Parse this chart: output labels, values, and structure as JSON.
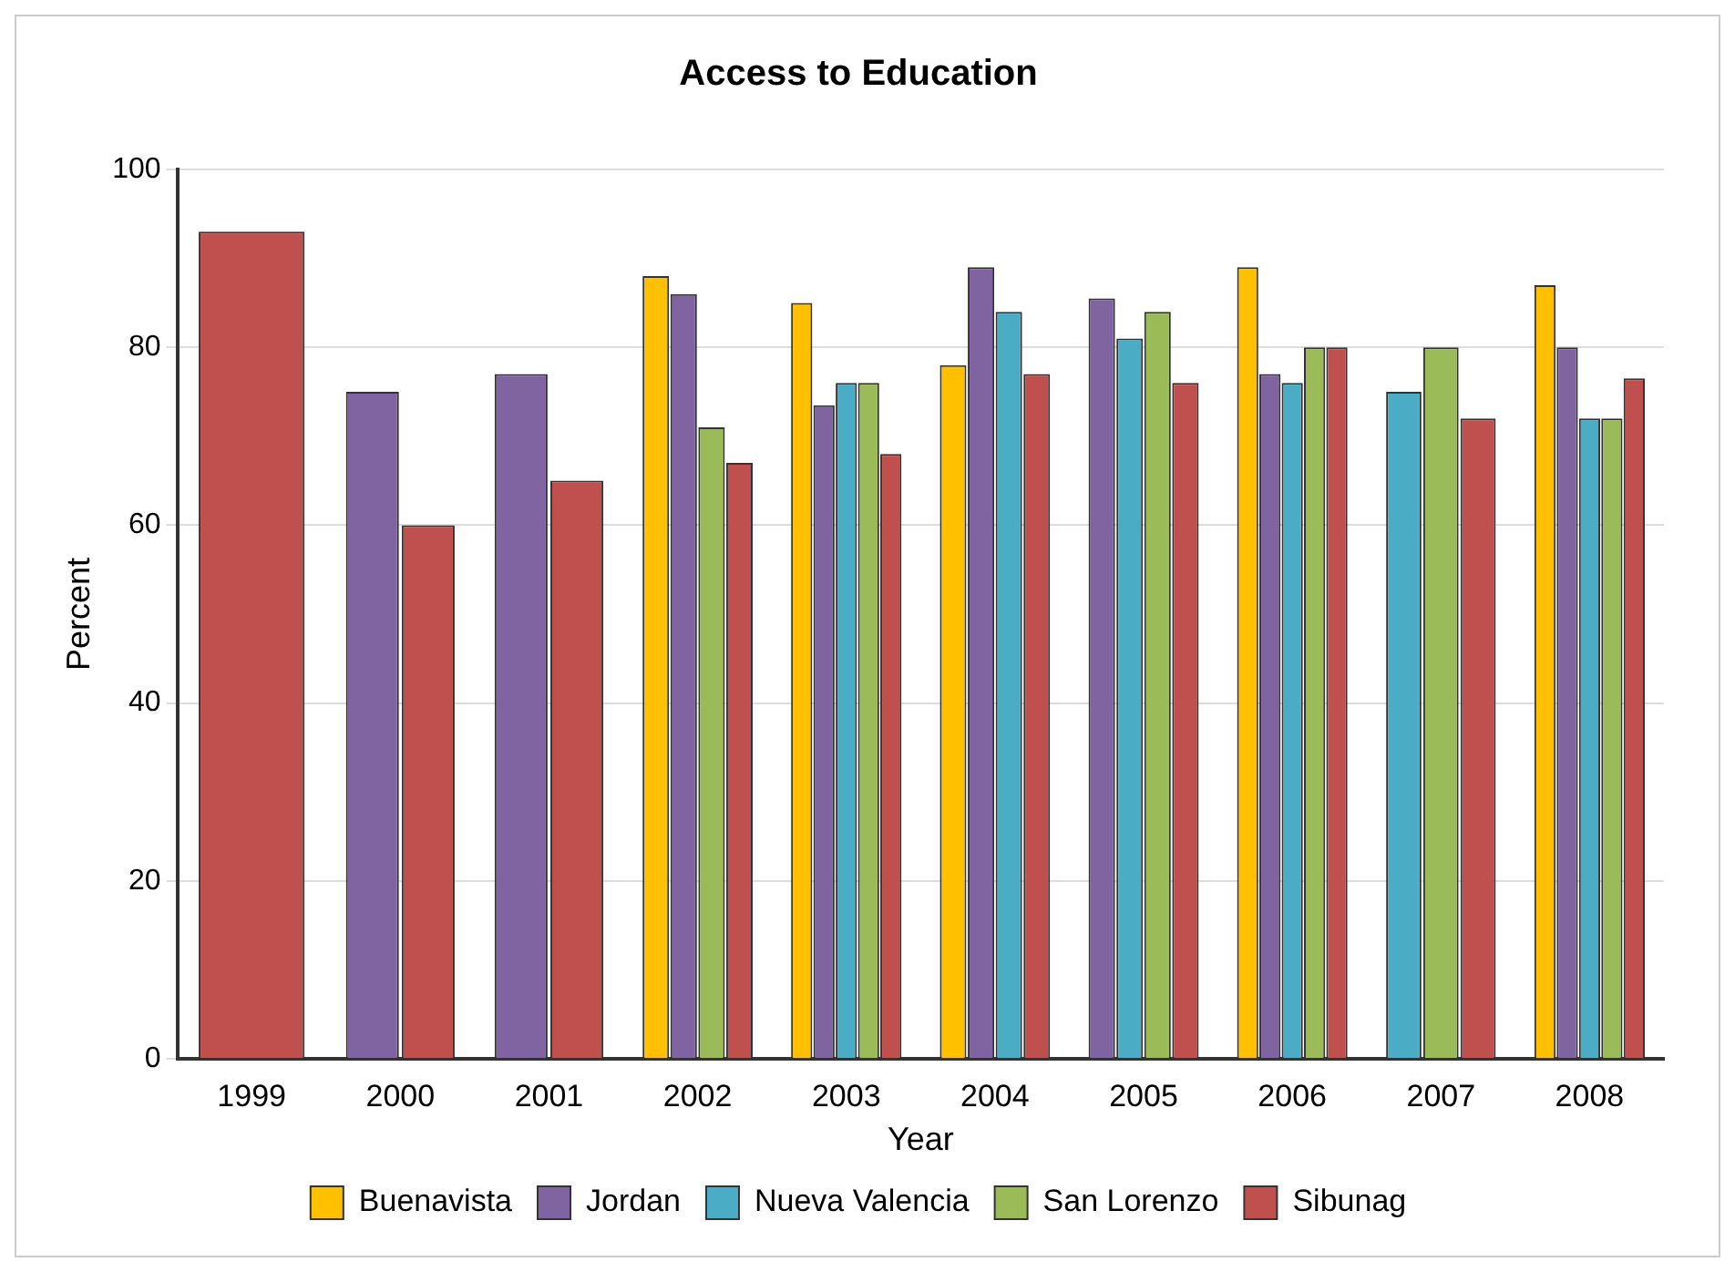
{
  "chart_data": {
    "type": "bar",
    "title": "Access to Education",
    "xlabel": "Year",
    "ylabel": "Percent",
    "categories": [
      "1999",
      "2000",
      "2001",
      "2002",
      "2003",
      "2004",
      "2005",
      "2006",
      "2007",
      "2008"
    ],
    "series": [
      {
        "name": "Buenavista",
        "color": "#ffc000",
        "values": [
          null,
          null,
          null,
          88,
          85,
          78,
          null,
          89,
          null,
          87
        ]
      },
      {
        "name": "Jordan",
        "color": "#8064a2",
        "values": [
          null,
          75,
          77,
          86,
          73.5,
          89,
          85.5,
          77,
          null,
          80
        ]
      },
      {
        "name": "Nueva Valencia",
        "color": "#4bacc6",
        "values": [
          null,
          null,
          null,
          null,
          76,
          84,
          81,
          76,
          75,
          72
        ]
      },
      {
        "name": "San Lorenzo",
        "color": "#9bbb59",
        "values": [
          null,
          null,
          null,
          71,
          76,
          null,
          84,
          80,
          80,
          72
        ]
      },
      {
        "name": "Sibunag",
        "color": "#c0504d",
        "values": [
          93,
          60,
          65,
          67,
          68,
          77,
          76,
          80,
          72,
          76.5
        ]
      }
    ],
    "ylim": [
      0,
      100
    ],
    "yticks": [
      0,
      20,
      40,
      60,
      80,
      100
    ],
    "grid": "y",
    "legend": "bottom"
  }
}
